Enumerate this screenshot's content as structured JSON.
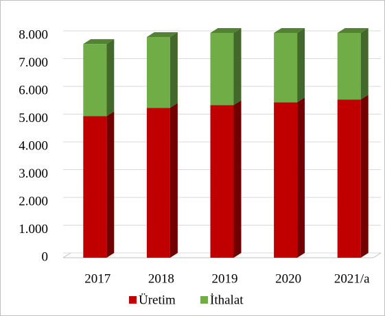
{
  "chart_data": {
    "type": "bar3d_stacked",
    "categories": [
      "2017",
      "2018",
      "2019",
      "2020",
      "2021/a"
    ],
    "series": [
      {
        "name": "Üretim",
        "color": "#c00000",
        "values": [
          5100,
          5400,
          5500,
          5600,
          5700
        ]
      },
      {
        "name": "İthalat",
        "color": "#70ad47",
        "values": [
          2600,
          2550,
          2600,
          2500,
          2400
        ]
      }
    ],
    "ylim": [
      0,
      8000
    ],
    "yticks": [
      0,
      {
        "value": 1000,
        "label": "1.000"
      },
      {
        "value": 2000,
        "label": "2.000"
      },
      {
        "value": 3000,
        "label": "3.000"
      },
      {
        "value": 4000,
        "label": "4.000"
      },
      {
        "value": 5000,
        "label": "5.000"
      },
      {
        "value": 6000,
        "label": "6.000"
      },
      {
        "value": 7000,
        "label": "7.000"
      },
      {
        "value": 8000,
        "label": "8.000"
      }
    ],
    "grid": true,
    "legend": "bottom"
  }
}
